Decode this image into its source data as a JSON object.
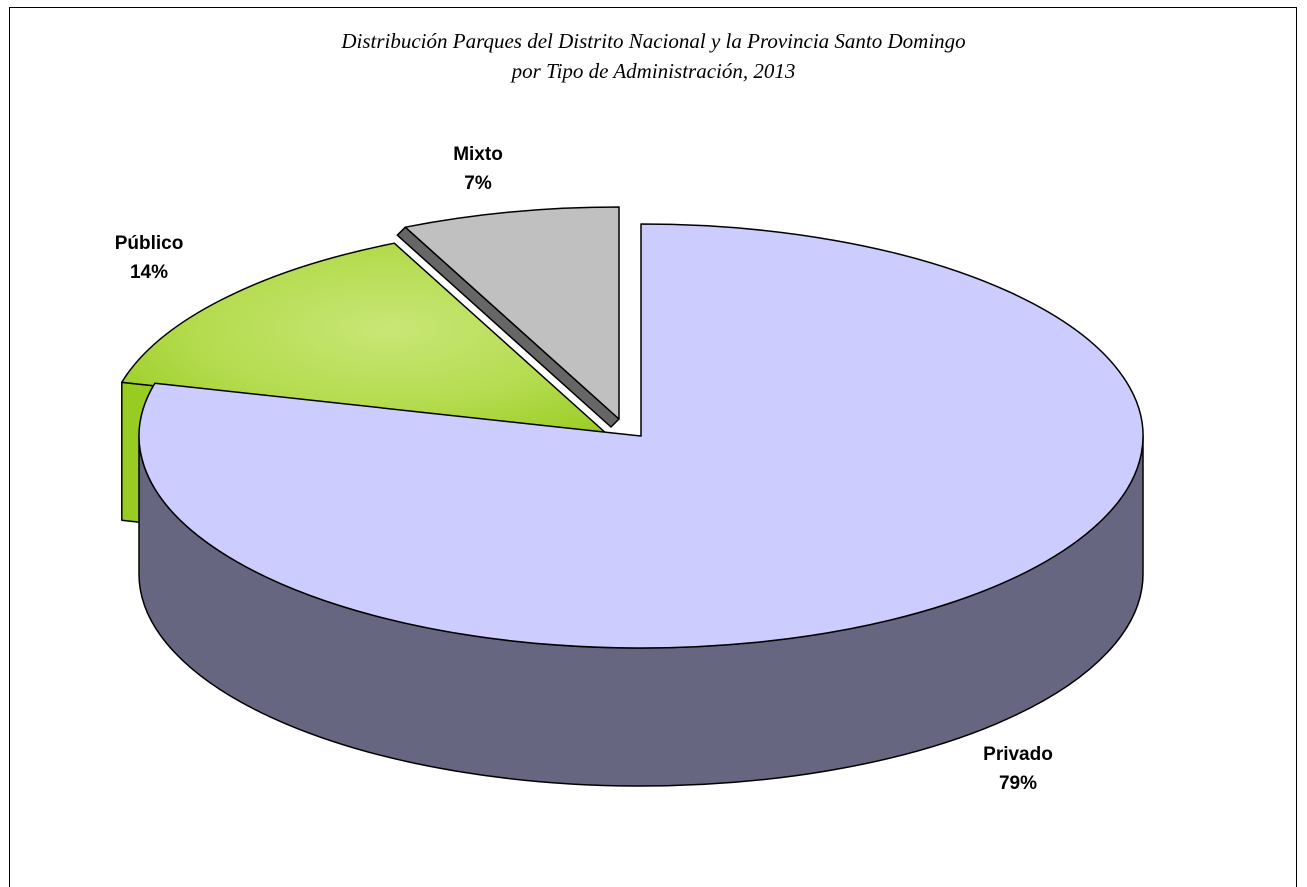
{
  "chart_data": {
    "type": "pie",
    "style": "3d-exploded",
    "title_lines": [
      "Distribución Parques del Distrito Nacional y la Provincia Santo Domingo",
      "por Tipo de Administración, 2013"
    ],
    "slices": [
      {
        "category": "Privado",
        "value": 79,
        "label": "79%",
        "color": "#ccccff",
        "side_color": "#666680"
      },
      {
        "category": "Público",
        "value": 14,
        "label": "14%",
        "color": "#99cc22",
        "highlight_color": "#c8e676",
        "side_color": "#99cc22"
      },
      {
        "category": "Mixto",
        "value": 7,
        "label": "7%",
        "color": "#c0c0c0",
        "side_color": "#666666"
      }
    ],
    "legend": "none",
    "data_labels": "outside"
  }
}
